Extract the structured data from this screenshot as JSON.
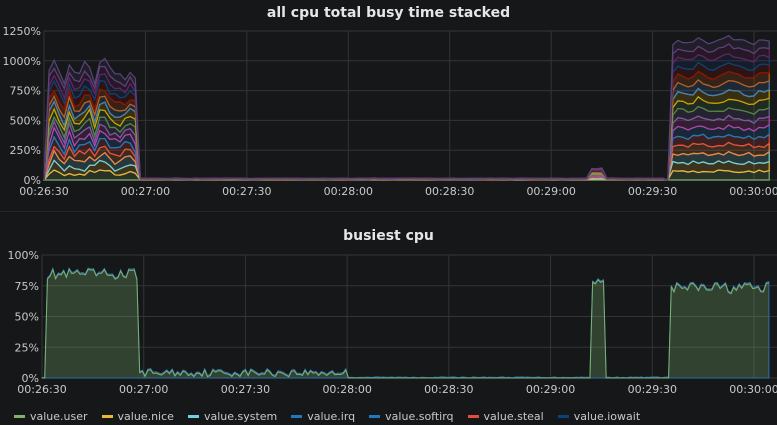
{
  "corner_icon": "↗",
  "panels": [
    {
      "title": "all cpu total busy time stacked"
    },
    {
      "title": "busiest cpu"
    }
  ],
  "colors": {
    "background": "#161719",
    "grid": "#333436"
  },
  "chart_data": [
    {
      "type": "area",
      "stacked": true,
      "title": "all cpu total busy time stacked",
      "x_ticks": [
        "00:26:30",
        "00:27:00",
        "00:27:30",
        "00:28:00",
        "00:28:30",
        "00:29:00",
        "00:29:30",
        "00:30:00"
      ],
      "y_ticks": [
        "0%",
        "250%",
        "500%",
        "750%",
        "1000%",
        "1250%"
      ],
      "ylim": [
        0,
        1250
      ],
      "series": [
        {
          "color": "#7eb26d"
        },
        {
          "color": "#eab839"
        },
        {
          "color": "#6ed0e0"
        },
        {
          "color": "#ef843c"
        },
        {
          "color": "#e24d42"
        },
        {
          "color": "#1f78c1"
        },
        {
          "color": "#ba43a9"
        },
        {
          "color": "#705da0"
        },
        {
          "color": "#508642"
        },
        {
          "color": "#cca300"
        },
        {
          "color": "#447ebc"
        },
        {
          "color": "#c15c17"
        },
        {
          "color": "#890f02"
        },
        {
          "color": "#0a437c"
        },
        {
          "color": "#6d1f62"
        },
        {
          "color": "#584477"
        }
      ],
      "segments": [
        {
          "x_start": "00:26:31",
          "x_end": "00:26:58",
          "total_percent": 930
        },
        {
          "x_start": "00:26:58",
          "x_end": "00:29:33",
          "total_percent": 15
        },
        {
          "x_start": "00:29:12",
          "x_end": "00:29:16",
          "total_percent": 95
        },
        {
          "x_start": "00:29:35",
          "x_end": "00:30:05",
          "total_percent": 1170
        }
      ]
    },
    {
      "type": "area",
      "title": "busiest cpu",
      "x_ticks": [
        "00:26:30",
        "00:27:00",
        "00:27:30",
        "00:28:00",
        "00:28:30",
        "00:29:00",
        "00:29:30",
        "00:30:00"
      ],
      "y_ticks": [
        "0%",
        "25%",
        "50%",
        "75%",
        "100%"
      ],
      "ylim": [
        0,
        100
      ],
      "segments": [
        {
          "x_start": "00:26:31",
          "x_end": "00:26:58",
          "value_percent": 85
        },
        {
          "x_start": "00:26:58",
          "x_end": "00:28:00",
          "value_percent": 5
        },
        {
          "x_start": "00:29:12",
          "x_end": "00:29:16",
          "value_percent": 78
        },
        {
          "x_start": "00:29:35",
          "x_end": "00:30:05",
          "value_percent": 74
        }
      ],
      "legend": [
        {
          "label": "value.user",
          "color": "#7eb26d"
        },
        {
          "label": "value.nice",
          "color": "#eab839"
        },
        {
          "label": "value.system",
          "color": "#6ed0e0"
        },
        {
          "label": "value.irq",
          "color": "#1f78c1"
        },
        {
          "label": "value.softirq",
          "color": "#1f78c1"
        },
        {
          "label": "value.steal",
          "color": "#e24d42"
        },
        {
          "label": "value.iowait",
          "color": "#0a437c"
        }
      ]
    }
  ]
}
